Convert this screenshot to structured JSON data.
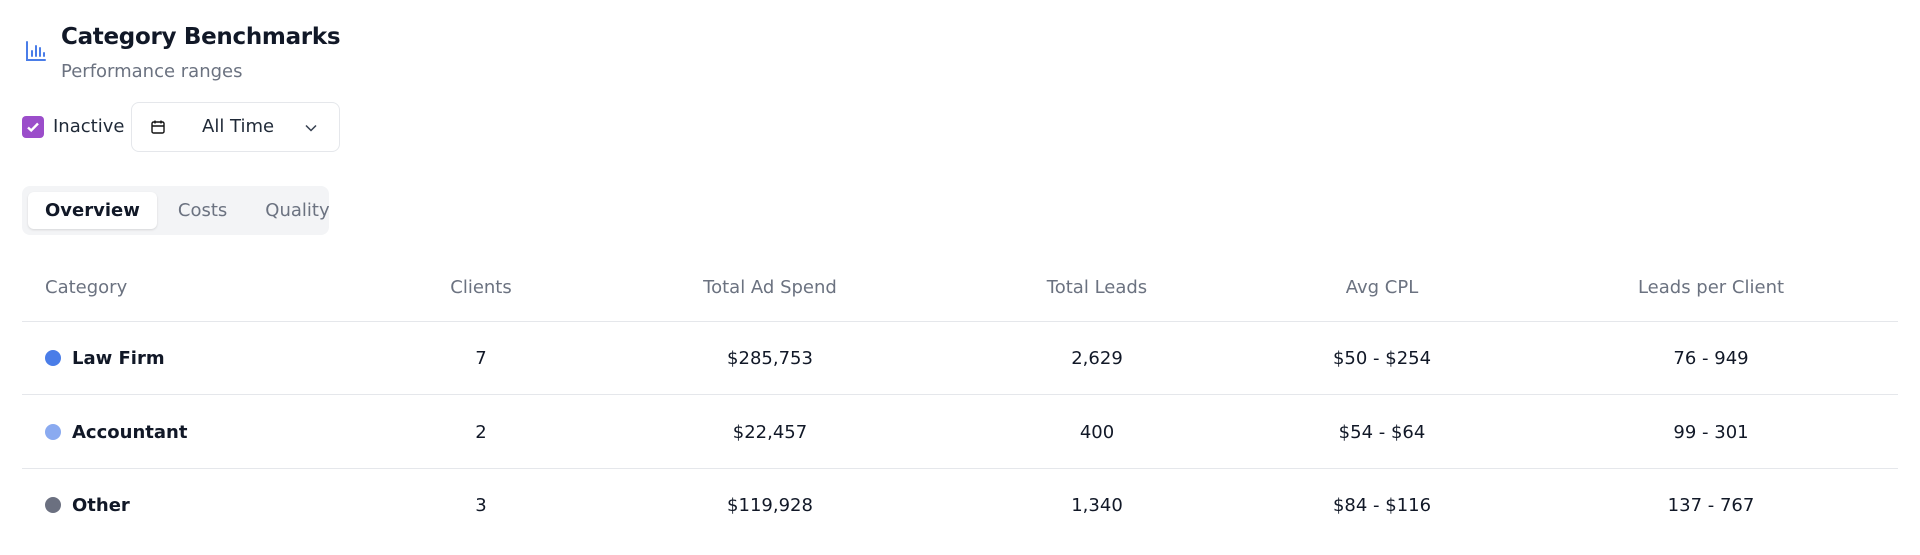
{
  "header": {
    "title": "Category Benchmarks",
    "subtitle": "Performance ranges"
  },
  "filters": {
    "checkbox_label": "Inactive",
    "checked": true,
    "date_range": "All Time"
  },
  "tabs": {
    "items": [
      "Overview",
      "Costs",
      "Quality"
    ],
    "active": 0
  },
  "table": {
    "columns": [
      "Category",
      "Clients",
      "Total Ad Spend",
      "Total Leads",
      "Avg CPL",
      "Leads per Client"
    ],
    "rows": [
      {
        "color": "#4a7de8",
        "cells": [
          "Law Firm",
          "7",
          "$285,753",
          "2,629",
          "$50 - $254",
          "76 - 949"
        ]
      },
      {
        "color": "#8aaaf0",
        "cells": [
          "Accountant",
          "2",
          "$22,457",
          "400",
          "$54 - $64",
          "99 - 301"
        ]
      },
      {
        "color": "#6b7080",
        "cells": [
          "Other",
          "3",
          "$119,928",
          "1,340",
          "$84 - $116",
          "137 - 767"
        ]
      }
    ]
  }
}
